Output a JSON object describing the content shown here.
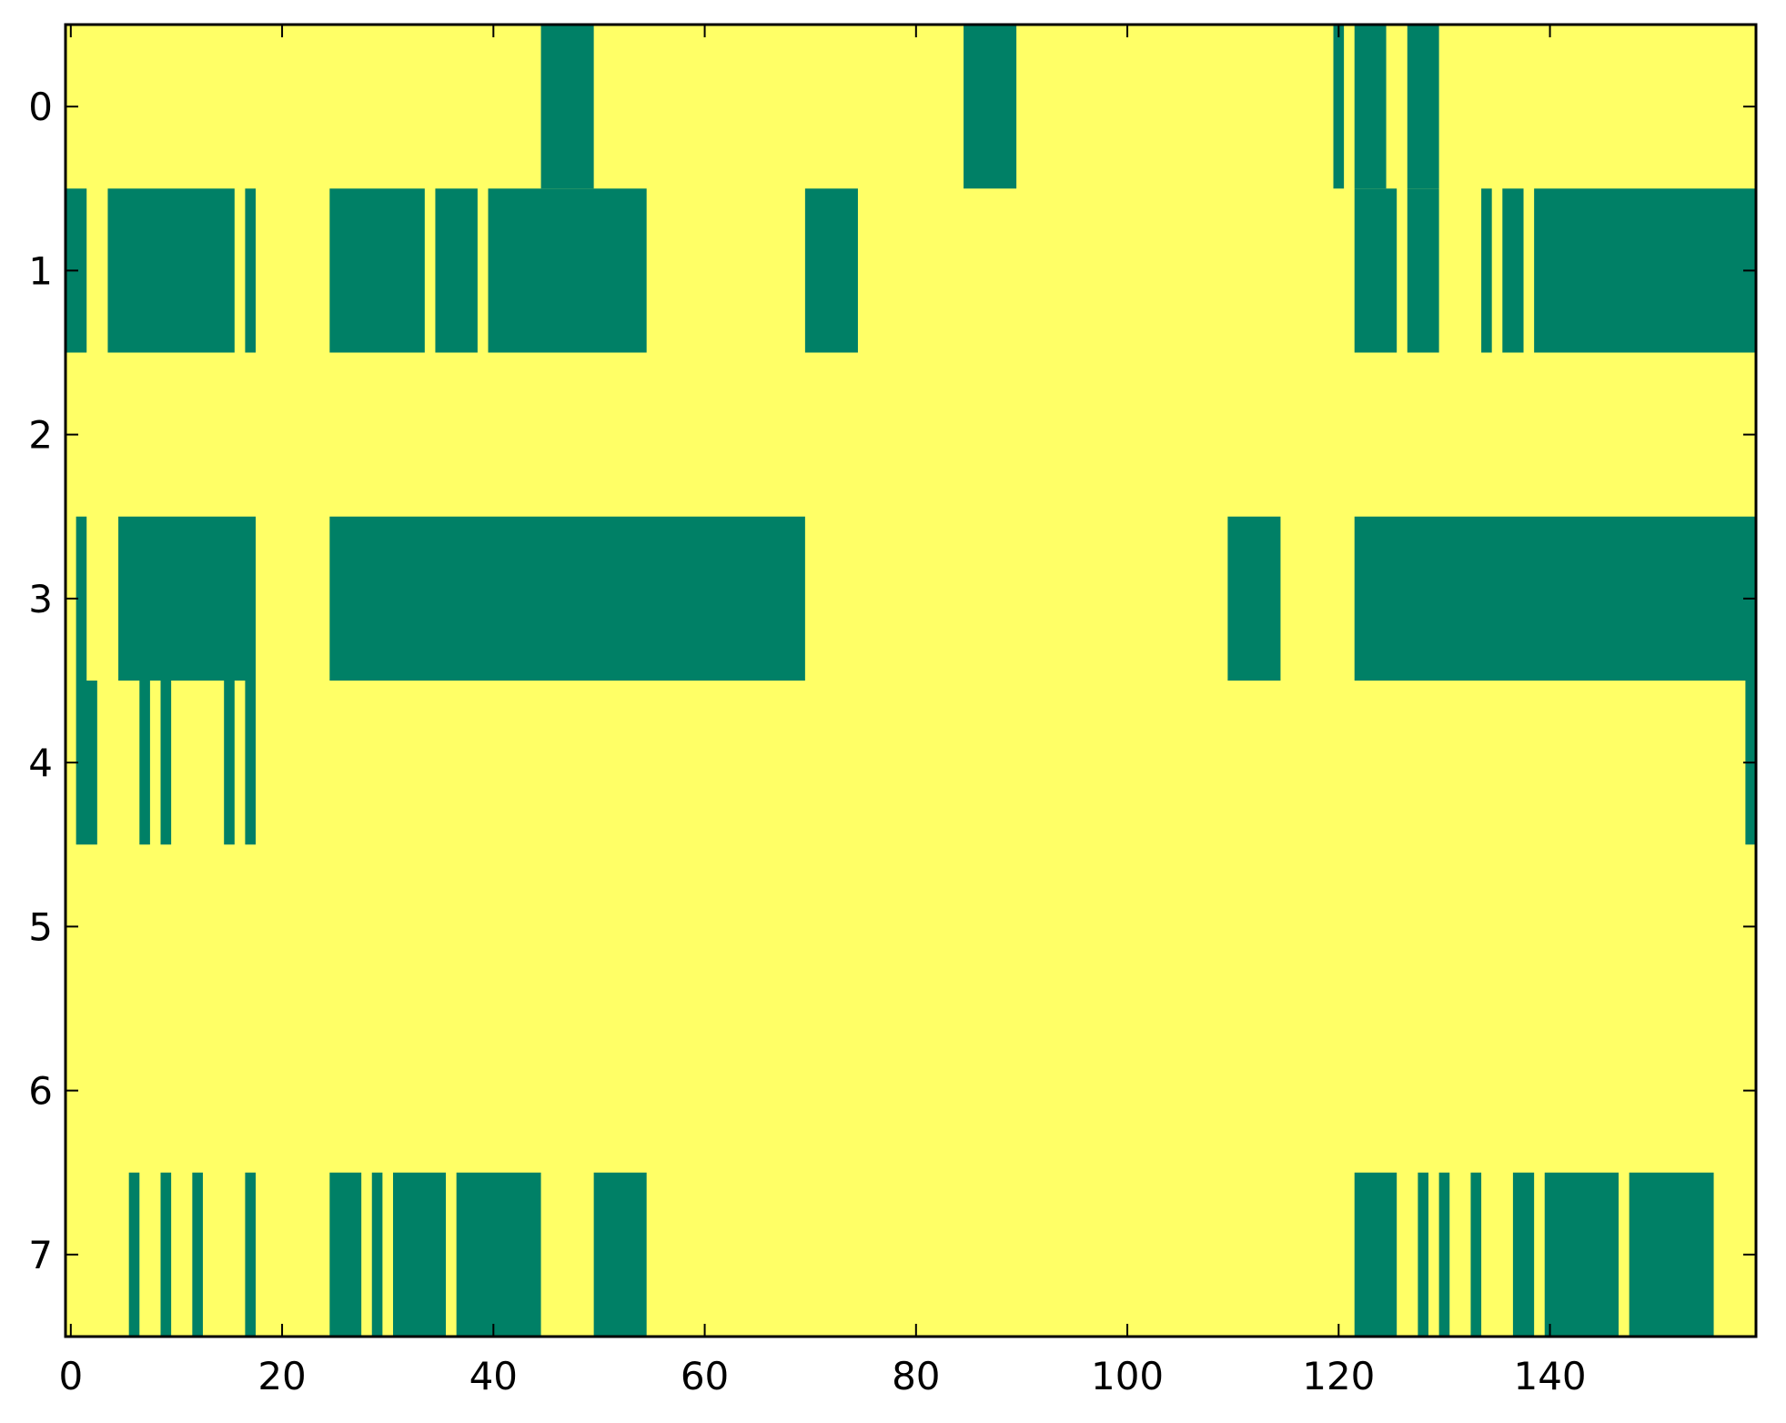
{
  "chart_data": {
    "type": "heatmap",
    "title": "",
    "xlabel": "",
    "ylabel": "",
    "xlim": [
      -0.5,
      159.5
    ],
    "ylim": [
      7.5,
      -0.5
    ],
    "n_columns": 160,
    "n_rows": 8,
    "x_ticks": [
      0,
      20,
      40,
      60,
      80,
      100,
      120,
      140
    ],
    "y_ticks": [
      0,
      1,
      2,
      3,
      4,
      5,
      6,
      7
    ],
    "grid": false,
    "legend": "none",
    "colors": {
      "low": "#ffff66",
      "high": "#008066",
      "frame": "#000000"
    },
    "values_note": "1 = green cell, 0 = yellow cell; listed as inclusive column ranges per row",
    "runs": [
      {
        "row": 0,
        "ranges": [
          [
            45,
            49
          ],
          [
            85,
            89
          ],
          [
            120,
            120
          ],
          [
            122,
            124
          ],
          [
            127,
            129
          ]
        ]
      },
      {
        "row": 1,
        "ranges": [
          [
            0,
            1
          ],
          [
            4,
            15
          ],
          [
            17,
            17
          ],
          [
            25,
            33
          ],
          [
            35,
            38
          ],
          [
            40,
            54
          ],
          [
            70,
            74
          ],
          [
            122,
            125
          ],
          [
            127,
            129
          ],
          [
            134,
            134
          ],
          [
            136,
            137
          ],
          [
            139,
            159
          ]
        ]
      },
      {
        "row": 2,
        "ranges": []
      },
      {
        "row": 3,
        "ranges": [
          [
            1,
            1
          ],
          [
            5,
            17
          ],
          [
            25,
            69
          ],
          [
            110,
            114
          ],
          [
            122,
            159
          ]
        ]
      },
      {
        "row": 4,
        "ranges": [
          [
            1,
            2
          ],
          [
            7,
            7
          ],
          [
            9,
            9
          ],
          [
            15,
            15
          ],
          [
            17,
            17
          ],
          [
            159,
            159
          ]
        ]
      },
      {
        "row": 5,
        "ranges": []
      },
      {
        "row": 6,
        "ranges": []
      },
      {
        "row": 7,
        "ranges": [
          [
            6,
            6
          ],
          [
            9,
            9
          ],
          [
            12,
            12
          ],
          [
            17,
            17
          ],
          [
            25,
            27
          ],
          [
            29,
            29
          ],
          [
            31,
            35
          ],
          [
            37,
            44
          ],
          [
            50,
            54
          ],
          [
            122,
            125
          ],
          [
            128,
            128
          ],
          [
            130,
            130
          ],
          [
            133,
            133
          ],
          [
            137,
            138
          ],
          [
            140,
            146
          ],
          [
            148,
            155
          ]
        ]
      }
    ]
  }
}
